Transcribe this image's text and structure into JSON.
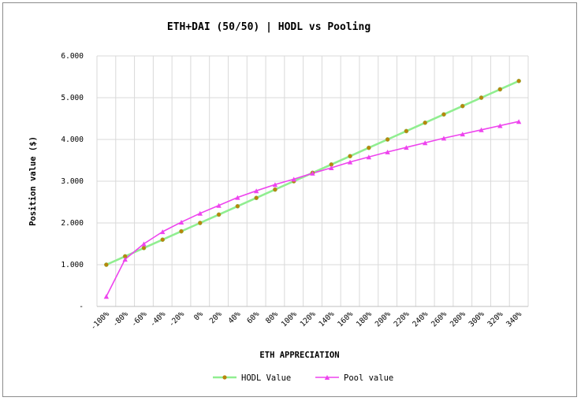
{
  "chart_data": {
    "type": "line",
    "title": "ETH+DAI (50/50) | HODL vs Pooling",
    "xlabel": "ETH APPRECIATION",
    "ylabel": "Position value ($)",
    "categories": [
      "-100%",
      "-80%",
      "-60%",
      "-40%",
      "-20%",
      "0%",
      "20%",
      "40%",
      "60%",
      "80%",
      "100%",
      "120%",
      "140%",
      "160%",
      "180%",
      "200%",
      "220%",
      "240%",
      "260%",
      "280%",
      "300%",
      "320%",
      "340%"
    ],
    "y_tick_labels": [
      "-",
      "1.000",
      "2.000",
      "3.000",
      "4.000",
      "5.000",
      "6.000"
    ],
    "ylim": [
      0,
      6000
    ],
    "grid": true,
    "legend_position": "bottom",
    "series": [
      {
        "name": "HODL Value",
        "color": "#90ee90",
        "marker_color": "#b8860b",
        "marker": "circle",
        "values": [
          1000,
          1200,
          1400,
          1600,
          1800,
          2000,
          2200,
          2400,
          2600,
          2800,
          3000,
          3200,
          3400,
          3600,
          3800,
          4000,
          4200,
          4400,
          4600,
          4800,
          5000,
          5200,
          5400
        ]
      },
      {
        "name": "Pool value",
        "color": "#ee44ee",
        "marker_color": "#ee44ee",
        "marker": "triangle",
        "values": [
          240,
          1130,
          1500,
          1790,
          2020,
          2230,
          2420,
          2610,
          2770,
          2920,
          3050,
          3190,
          3320,
          3460,
          3580,
          3700,
          3810,
          3920,
          4030,
          4130,
          4230,
          4330,
          4430
        ]
      }
    ]
  }
}
